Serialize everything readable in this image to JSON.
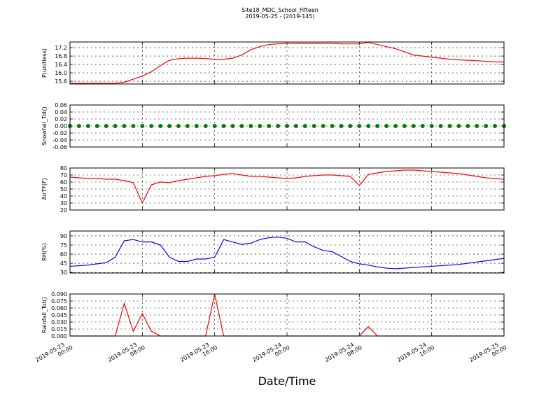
{
  "title": "Site18_MDC_School_Fifteen",
  "subtitle": "2019-05-25 - (2019-145)",
  "x_label": "Date/Time",
  "chart_data": [
    {
      "type": "line",
      "y_label": "P(unitless)",
      "ylim": [
        15.47,
        17.47
      ],
      "yticks": [
        15.6,
        {
          "value": 16.0,
          "label": "16.0"
        },
        16.4,
        16.8,
        17.2
      ],
      "xlim": [
        "2019-05-23 00:00",
        "2019-05-25 00:00"
      ],
      "xticks": [
        "2019-05-23 00:00",
        "2019-05-23 08:00",
        "2019-05-23 16:00",
        "2019-05-24 00:00",
        "2019-05-24 08:00",
        "2019-05-24 16:00",
        "2019-05-25 00:00"
      ],
      "grid": true,
      "x": [
        "2019-05-23 00:00",
        "2019-05-23 01:00",
        "2019-05-23 02:00",
        "2019-05-23 03:00",
        "2019-05-23 04:00",
        "2019-05-23 05:00",
        "2019-05-23 06:00",
        "2019-05-23 07:00",
        "2019-05-23 08:00",
        "2019-05-23 09:00",
        "2019-05-23 10:00",
        "2019-05-23 11:00",
        "2019-05-23 12:00",
        "2019-05-23 13:00",
        "2019-05-23 14:00",
        "2019-05-23 15:00",
        "2019-05-23 16:00",
        "2019-05-23 17:00",
        "2019-05-23 18:00",
        "2019-05-23 19:00",
        "2019-05-23 20:00",
        "2019-05-23 21:00",
        "2019-05-23 22:00",
        "2019-05-23 23:00",
        "2019-05-24 00:00",
        "2019-05-24 01:00",
        "2019-05-24 02:00",
        "2019-05-24 03:00",
        "2019-05-24 04:00",
        "2019-05-24 05:00",
        "2019-05-24 06:00",
        "2019-05-24 07:00",
        "2019-05-24 08:00",
        "2019-05-24 09:00",
        "2019-05-24 10:00",
        "2019-05-24 11:00",
        "2019-05-24 12:00",
        "2019-05-24 13:00",
        "2019-05-24 14:00",
        "2019-05-24 15:00",
        "2019-05-24 16:00",
        "2019-05-24 17:00",
        "2019-05-24 18:00",
        "2019-05-24 19:00",
        "2019-05-24 20:00",
        "2019-05-24 21:00",
        "2019-05-24 22:00",
        "2019-05-24 23:00",
        "2019-05-25 00:00"
      ],
      "series": [
        {
          "color": "#ff0000",
          "values": [
            15.5,
            15.5,
            15.5,
            15.5,
            15.5,
            15.5,
            15.55,
            15.7,
            15.85,
            16.05,
            16.35,
            16.6,
            16.68,
            16.7,
            16.7,
            16.68,
            16.65,
            16.65,
            16.7,
            16.85,
            17.1,
            17.25,
            17.35,
            17.38,
            17.4,
            17.4,
            17.4,
            17.4,
            17.4,
            17.4,
            17.38,
            17.38,
            17.38,
            17.45,
            17.35,
            17.25,
            17.15,
            17.0,
            16.85,
            16.8,
            16.75,
            16.7,
            16.65,
            16.62,
            16.6,
            16.58,
            16.55,
            16.52,
            16.52
          ]
        }
      ]
    },
    {
      "type": "scatter",
      "y_label": "Snowfall_Tot()",
      "ylim": [
        -0.06,
        0.06
      ],
      "yticks": [
        -0.06,
        -0.04,
        -0.02,
        {
          "value": 0,
          "label": "0.00"
        },
        0.02,
        0.04,
        0.06
      ],
      "xlim": [
        "2019-05-23 00:00",
        "2019-05-25 00:00"
      ],
      "xticks": [
        "2019-05-23 00:00",
        "2019-05-23 08:00",
        "2019-05-23 16:00",
        "2019-05-24 00:00",
        "2019-05-24 08:00",
        "2019-05-24 16:00",
        "2019-05-25 00:00"
      ],
      "grid": true,
      "x": [
        "2019-05-23 00:00",
        "2019-05-23 01:00",
        "2019-05-23 02:00",
        "2019-05-23 03:00",
        "2019-05-23 04:00",
        "2019-05-23 05:00",
        "2019-05-23 06:00",
        "2019-05-23 07:00",
        "2019-05-23 08:00",
        "2019-05-23 09:00",
        "2019-05-23 10:00",
        "2019-05-23 11:00",
        "2019-05-23 12:00",
        "2019-05-23 13:00",
        "2019-05-23 14:00",
        "2019-05-23 15:00",
        "2019-05-23 16:00",
        "2019-05-23 17:00",
        "2019-05-23 18:00",
        "2019-05-23 19:00",
        "2019-05-23 20:00",
        "2019-05-23 21:00",
        "2019-05-23 22:00",
        "2019-05-23 23:00",
        "2019-05-24 00:00",
        "2019-05-24 01:00",
        "2019-05-24 02:00",
        "2019-05-24 03:00",
        "2019-05-24 04:00",
        "2019-05-24 05:00",
        "2019-05-24 06:00",
        "2019-05-24 07:00",
        "2019-05-24 08:00",
        "2019-05-24 09:00",
        "2019-05-24 10:00",
        "2019-05-24 11:00",
        "2019-05-24 12:00",
        "2019-05-24 13:00",
        "2019-05-24 14:00",
        "2019-05-24 15:00",
        "2019-05-24 16:00",
        "2019-05-24 17:00",
        "2019-05-24 18:00",
        "2019-05-24 19:00",
        "2019-05-24 20:00",
        "2019-05-24 21:00",
        "2019-05-24 22:00",
        "2019-05-24 23:00",
        "2019-05-25 00:00"
      ],
      "series": [
        {
          "color": "#008000",
          "values": [
            0,
            0,
            0,
            0,
            0,
            0,
            0,
            0,
            0,
            0,
            0,
            0,
            0,
            0,
            0,
            0,
            0,
            0,
            0,
            0,
            0,
            0,
            0,
            0,
            0,
            0,
            0,
            0,
            0,
            0,
            0,
            0,
            0,
            0,
            0,
            0,
            0,
            0,
            0,
            0,
            0,
            0,
            0,
            0,
            0,
            0,
            0,
            0,
            0
          ]
        }
      ]
    },
    {
      "type": "line",
      "y_label": "AirTF(F)",
      "ylim": [
        20,
        80
      ],
      "yticks": [
        20,
        30,
        40,
        50,
        60,
        70,
        80
      ],
      "xlim": [
        "2019-05-23 00:00",
        "2019-05-25 00:00"
      ],
      "xticks": [
        "2019-05-23 00:00",
        "2019-05-23 08:00",
        "2019-05-23 16:00",
        "2019-05-24 00:00",
        "2019-05-24 08:00",
        "2019-05-24 16:00",
        "2019-05-25 00:00"
      ],
      "grid": true,
      "x": [
        "2019-05-23 00:00",
        "2019-05-23 01:00",
        "2019-05-23 02:00",
        "2019-05-23 03:00",
        "2019-05-23 04:00",
        "2019-05-23 05:00",
        "2019-05-23 06:00",
        "2019-05-23 07:00",
        "2019-05-23 08:00",
        "2019-05-23 09:00",
        "2019-05-23 10:00",
        "2019-05-23 11:00",
        "2019-05-23 12:00",
        "2019-05-23 13:00",
        "2019-05-23 14:00",
        "2019-05-23 15:00",
        "2019-05-23 16:00",
        "2019-05-23 17:00",
        "2019-05-23 18:00",
        "2019-05-23 19:00",
        "2019-05-23 20:00",
        "2019-05-23 21:00",
        "2019-05-23 22:00",
        "2019-05-23 23:00",
        "2019-05-24 00:00",
        "2019-05-24 01:00",
        "2019-05-24 02:00",
        "2019-05-24 03:00",
        "2019-05-24 04:00",
        "2019-05-24 05:00",
        "2019-05-24 06:00",
        "2019-05-24 07:00",
        "2019-05-24 08:00",
        "2019-05-24 09:00",
        "2019-05-24 10:00",
        "2019-05-24 11:00",
        "2019-05-24 12:00",
        "2019-05-24 13:00",
        "2019-05-24 14:00",
        "2019-05-24 15:00",
        "2019-05-24 16:00",
        "2019-05-24 17:00",
        "2019-05-24 18:00",
        "2019-05-24 19:00",
        "2019-05-24 20:00",
        "2019-05-24 21:00",
        "2019-05-24 22:00",
        "2019-05-24 23:00",
        "2019-05-25 00:00"
      ],
      "series": [
        {
          "color": "#ff0000",
          "values": [
            67,
            66,
            65,
            65,
            64,
            64,
            62,
            59,
            30,
            56,
            60,
            59,
            62,
            64,
            66,
            68,
            69,
            71,
            72,
            70,
            68,
            68,
            67,
            66,
            65,
            66,
            68,
            69,
            70,
            70,
            69,
            68,
            55,
            71,
            73,
            75,
            76,
            77,
            77,
            76,
            75,
            74,
            73,
            72,
            70,
            68,
            66,
            65,
            64
          ]
        }
      ]
    },
    {
      "type": "line",
      "y_label": "RH(%)",
      "ylim": [
        29,
        98
      ],
      "yticks": [
        30,
        45,
        60,
        75,
        90
      ],
      "xlim": [
        "2019-05-23 00:00",
        "2019-05-25 00:00"
      ],
      "xticks": [
        "2019-05-23 00:00",
        "2019-05-23 08:00",
        "2019-05-23 16:00",
        "2019-05-24 00:00",
        "2019-05-24 08:00",
        "2019-05-24 16:00",
        "2019-05-25 00:00"
      ],
      "grid": true,
      "x": [
        "2019-05-23 00:00",
        "2019-05-23 01:00",
        "2019-05-23 02:00",
        "2019-05-23 03:00",
        "2019-05-23 04:00",
        "2019-05-23 05:00",
        "2019-05-23 06:00",
        "2019-05-23 07:00",
        "2019-05-23 08:00",
        "2019-05-23 09:00",
        "2019-05-23 10:00",
        "2019-05-23 11:00",
        "2019-05-23 12:00",
        "2019-05-23 13:00",
        "2019-05-23 14:00",
        "2019-05-23 15:00",
        "2019-05-23 16:00",
        "2019-05-23 17:00",
        "2019-05-23 18:00",
        "2019-05-23 19:00",
        "2019-05-23 20:00",
        "2019-05-23 21:00",
        "2019-05-23 22:00",
        "2019-05-23 23:00",
        "2019-05-24 00:00",
        "2019-05-24 01:00",
        "2019-05-24 02:00",
        "2019-05-24 03:00",
        "2019-05-24 04:00",
        "2019-05-24 05:00",
        "2019-05-24 06:00",
        "2019-05-24 07:00",
        "2019-05-24 08:00",
        "2019-05-24 09:00",
        "2019-05-24 10:00",
        "2019-05-24 11:00",
        "2019-05-24 12:00",
        "2019-05-24 13:00",
        "2019-05-24 14:00",
        "2019-05-24 15:00",
        "2019-05-24 16:00",
        "2019-05-24 17:00",
        "2019-05-24 18:00",
        "2019-05-24 19:00",
        "2019-05-24 20:00",
        "2019-05-24 21:00",
        "2019-05-24 22:00",
        "2019-05-24 23:00",
        "2019-05-25 00:00"
      ],
      "series": [
        {
          "color": "#0000ff",
          "values": [
            40,
            41,
            42,
            44,
            46,
            55,
            82,
            84,
            80,
            80,
            75,
            55,
            48,
            48,
            52,
            52,
            55,
            84,
            80,
            76,
            78,
            84,
            87,
            88,
            86,
            80,
            80,
            72,
            66,
            64,
            56,
            48,
            44,
            42,
            39,
            37,
            36,
            37,
            38,
            39,
            40,
            41,
            42,
            43,
            45,
            47,
            49,
            51,
            53
          ]
        }
      ]
    },
    {
      "type": "line",
      "y_label": "Rainfall_Tot()",
      "ylim": [
        0,
        0.09
      ],
      "yticks": [
        {
          "value": 0,
          "label": "0.000"
        },
        {
          "value": 0.015,
          "label": "0.015"
        },
        {
          "value": 0.03,
          "label": "0.030"
        },
        {
          "value": 0.045,
          "label": "0.045"
        },
        {
          "value": 0.06,
          "label": "0.060"
        },
        {
          "value": 0.075,
          "label": "0.075"
        },
        {
          "value": 0.09,
          "label": "0.090"
        }
      ],
      "xlim": [
        "2019-05-23 00:00",
        "2019-05-25 00:00"
      ],
      "xticks": [
        "2019-05-23 00:00",
        "2019-05-23 08:00",
        "2019-05-23 16:00",
        "2019-05-24 00:00",
        "2019-05-24 08:00",
        "2019-05-24 16:00",
        "2019-05-25 00:00"
      ],
      "xtick_labels": true,
      "grid": true,
      "x": [
        "2019-05-23 00:00",
        "2019-05-23 01:00",
        "2019-05-23 02:00",
        "2019-05-23 03:00",
        "2019-05-23 04:00",
        "2019-05-23 05:00",
        "2019-05-23 06:00",
        "2019-05-23 07:00",
        "2019-05-23 08:00",
        "2019-05-23 09:00",
        "2019-05-23 10:00",
        "2019-05-23 11:00",
        "2019-05-23 12:00",
        "2019-05-23 13:00",
        "2019-05-23 14:00",
        "2019-05-23 15:00",
        "2019-05-23 16:00",
        "2019-05-23 17:00",
        "2019-05-23 18:00",
        "2019-05-23 19:00",
        "2019-05-23 20:00",
        "2019-05-23 21:00",
        "2019-05-23 22:00",
        "2019-05-23 23:00",
        "2019-05-24 00:00",
        "2019-05-24 01:00",
        "2019-05-24 02:00",
        "2019-05-24 03:00",
        "2019-05-24 04:00",
        "2019-05-24 05:00",
        "2019-05-24 06:00",
        "2019-05-24 07:00",
        "2019-05-24 08:00",
        "2019-05-24 09:00",
        "2019-05-24 10:00",
        "2019-05-24 11:00",
        "2019-05-24 12:00",
        "2019-05-24 13:00",
        "2019-05-24 14:00",
        "2019-05-24 15:00",
        "2019-05-24 16:00",
        "2019-05-24 17:00",
        "2019-05-24 18:00",
        "2019-05-24 19:00",
        "2019-05-24 20:00",
        "2019-05-24 21:00",
        "2019-05-24 22:00",
        "2019-05-24 23:00",
        "2019-05-25 00:00"
      ],
      "series": [
        {
          "color": "#ff0000",
          "values": [
            0,
            0,
            0,
            0,
            0,
            0,
            0.07,
            0.01,
            0.048,
            0.01,
            0,
            0,
            0,
            0,
            0,
            0,
            0.09,
            0,
            0,
            0,
            0,
            0,
            0,
            0,
            0,
            0,
            0,
            0,
            0,
            0,
            0,
            0,
            0,
            0.02,
            0,
            0,
            0,
            0,
            0,
            0,
            0,
            0,
            0,
            0,
            0,
            0,
            0,
            0,
            0
          ]
        }
      ]
    }
  ]
}
